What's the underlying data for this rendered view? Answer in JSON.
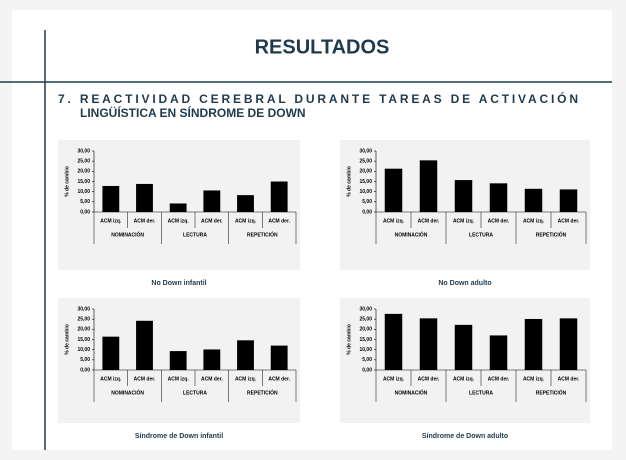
{
  "title": "RESULTADOS",
  "subtitle_lines": [
    "7.  REACTIVIDAD CEREBRAL DURANTE TAREAS DE ACTIVACIÓN",
    "LINGÜÍSTICA EN SÍNDROME DE DOWN"
  ],
  "chart_data": [
    {
      "type": "bar",
      "title": "No Down infantil",
      "ylabel": "% de cambio",
      "color": "#000000",
      "categories": [
        "ACM izq.",
        "ACM der.",
        "ACM izq.",
        "ACM der.",
        "ACM izq.",
        "ACM der."
      ],
      "groups": [
        "NOMINACIÓN",
        "LECTURA",
        "REPETICIÓN"
      ],
      "values": [
        12.8,
        13.8,
        4.2,
        10.6,
        8.3,
        15.0
      ],
      "ylim": [
        0,
        30
      ],
      "yticks": [
        {
          "value": 0,
          "label": "0,00"
        },
        {
          "value": 5,
          "label": "5,00"
        },
        {
          "value": 10,
          "label": "10,00"
        },
        {
          "value": 15,
          "label": "15,00"
        },
        {
          "value": 20,
          "label": "20,00"
        },
        {
          "value": 25,
          "label": "25,00"
        },
        {
          "value": 30,
          "label": "30,00"
        }
      ]
    },
    {
      "type": "bar",
      "title": "No Down adulto",
      "ylabel": "% de cambio",
      "color": "#000000",
      "categories": [
        "ACM izq.",
        "ACM der.",
        "ACM izq.",
        "ACM der.",
        "ACM izq.",
        "ACM der."
      ],
      "groups": [
        "NOMINACIÓN",
        "LECTURA",
        "REPETICIÓN"
      ],
      "values": [
        21.3,
        25.4,
        15.7,
        14.1,
        11.4,
        11.1
      ],
      "ylim": [
        0,
        30
      ],
      "yticks": [
        {
          "value": 0,
          "label": "0,00"
        },
        {
          "value": 5,
          "label": "5,00"
        },
        {
          "value": 10,
          "label": "10,00"
        },
        {
          "value": 15,
          "label": "15,00"
        },
        {
          "value": 20,
          "label": "20,00"
        },
        {
          "value": 25,
          "label": "25,00"
        },
        {
          "value": 30,
          "label": "30,00"
        }
      ]
    },
    {
      "type": "bar",
      "title": "Síndrome de  Down infantil",
      "ylabel": "% de cambio",
      "color": "#000000",
      "categories": [
        "ACM izq.",
        "ACM der.",
        "ACM izq.",
        "ACM der.",
        "ACM izq.",
        "ACM der."
      ],
      "groups": [
        "NOMINACIÓN",
        "LECTURA",
        "REPETICIÓN"
      ],
      "values": [
        16.4,
        24.2,
        9.3,
        10.1,
        14.6,
        12.0
      ],
      "ylim": [
        0,
        30
      ],
      "yticks": [
        {
          "value": 0,
          "label": "0,00"
        },
        {
          "value": 5,
          "label": "5,00"
        },
        {
          "value": 10,
          "label": "10,00"
        },
        {
          "value": 15,
          "label": "15,00"
        },
        {
          "value": 20,
          "label": "20,00"
        },
        {
          "value": 25,
          "label": "25,00"
        },
        {
          "value": 30,
          "label": "30,00"
        }
      ]
    },
    {
      "type": "bar",
      "title": "Síndrome de  Down adulto",
      "ylabel": "% de cambio",
      "color": "#000000",
      "categories": [
        "ACM izq.",
        "ACM der.",
        "ACM izq.",
        "ACM der.",
        "ACM izq.",
        "ACM der."
      ],
      "groups": [
        "NOMINACIÓN",
        "LECTURA",
        "REPETICIÓN"
      ],
      "values": [
        27.6,
        25.4,
        22.2,
        17.0,
        25.1,
        25.4
      ],
      "ylim": [
        0,
        30
      ],
      "yticks": [
        {
          "value": 0,
          "label": "0,00"
        },
        {
          "value": 5,
          "label": "5,00"
        },
        {
          "value": 10,
          "label": "10,00"
        },
        {
          "value": 15,
          "label": "15,00"
        },
        {
          "value": 20,
          "label": "20,00"
        },
        {
          "value": 25,
          "label": "25,00"
        },
        {
          "value": 30,
          "label": "30,00"
        }
      ]
    }
  ]
}
